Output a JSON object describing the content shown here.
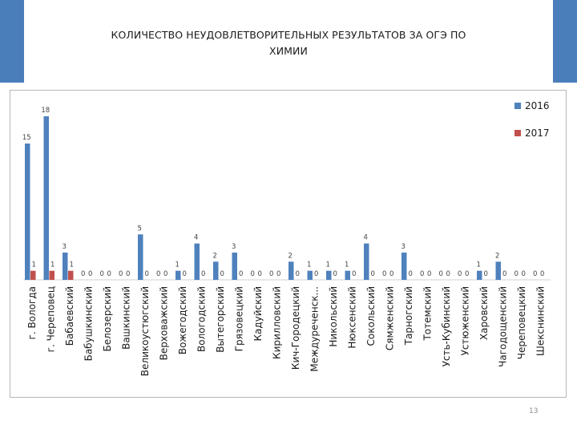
{
  "slide": {
    "title_line1": "КОЛИЧЕСТВО  НЕУДОВЛЕТВОРИТЕЛЬНЫХ РЕЗУЛЬТАТОВ ЗА ОГЭ  ПО",
    "title_line2": "ХИМИИ",
    "page_number": "13",
    "accent_color": "#4a7ebb"
  },
  "chart_data": {
    "type": "bar",
    "categories": [
      "г. Вологда",
      "г. Череповец",
      "Бабаевский",
      "Бабушкинский",
      "Белозерский",
      "Вашкинский",
      "Великоустюгский",
      "Верховажский",
      "Вожегодский",
      "Вологодский",
      "Вытегорский",
      "Грязовецкий",
      "Кадуйский",
      "Кирилловский",
      "Кич-Городецкий",
      "Междуреченск...",
      "Никольский",
      "Нюксенский",
      "Сокольский",
      "Сямженский",
      "Тарногский",
      "Тотемский",
      "Усть-Кубинский",
      "Устюженский",
      "Харовский",
      "Чагодощенский",
      "Череповецкий",
      "Шекснинский"
    ],
    "series": [
      {
        "name": "2016",
        "color": "#4f81bd",
        "values": [
          15,
          18,
          3,
          0,
          0,
          0,
          5,
          0,
          1,
          4,
          2,
          3,
          0,
          0,
          2,
          1,
          1,
          1,
          4,
          0,
          3,
          0,
          0,
          0,
          1,
          2,
          0,
          0
        ]
      },
      {
        "name": "2017",
        "color": "#c0504d",
        "values": [
          1,
          1,
          1,
          0,
          0,
          0,
          0,
          0,
          0,
          0,
          0,
          0,
          0,
          0,
          0,
          0,
          0,
          0,
          0,
          0,
          0,
          0,
          0,
          0,
          0,
          0,
          0,
          0
        ]
      }
    ],
    "ylim": [
      0,
      18
    ],
    "legend_position": "top-right",
    "grid": false
  }
}
